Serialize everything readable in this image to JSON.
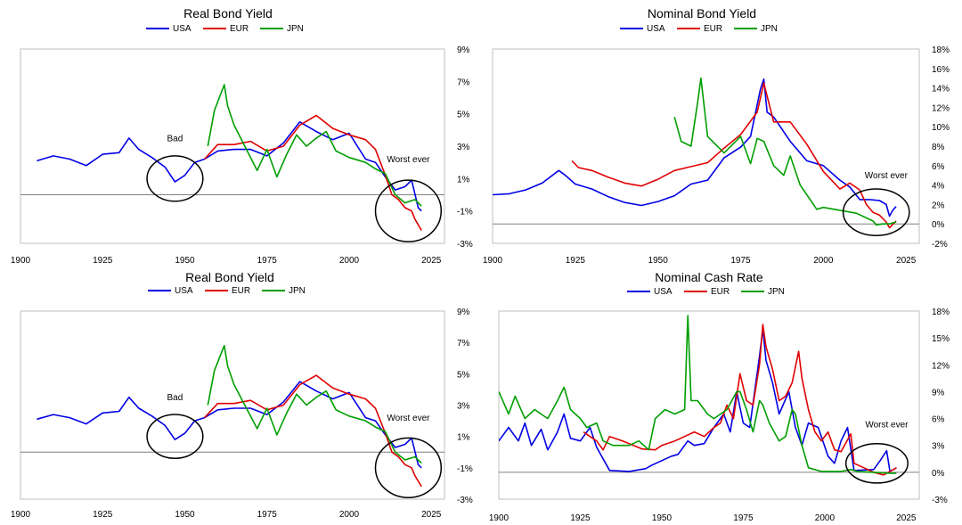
{
  "colors": {
    "USA": "#0000e6",
    "EUR": "#e00000",
    "JPN": "#009e00"
  },
  "chart_data": [
    {
      "type": "line",
      "title": "Real Bond Yield",
      "legend": [
        "USA",
        "EUR",
        "JPN"
      ],
      "x_ticks": [
        "1900",
        "1925",
        "1950",
        "1975",
        "2000",
        "2025"
      ],
      "y_ticks": [
        "9%",
        "7%",
        "5%",
        "3%",
        "1%",
        "-1%",
        "-3%"
      ],
      "xlim": [
        1900,
        2025
      ],
      "ylim": [
        -3,
        9
      ],
      "baseline": 0,
      "annotations": [
        {
          "label": "Bad",
          "x": 1947,
          "y": 3.3,
          "circle": [
            1947,
            1.0,
            8.5,
            1.4
          ]
        },
        {
          "label": "Worst ever",
          "x": 2018,
          "y": 2.0,
          "circle": [
            2018,
            -1.0,
            10,
            1.9
          ]
        }
      ],
      "series": [
        {
          "name": "USA",
          "x": [
            1905,
            1910,
            1915,
            1920,
            1925,
            1930,
            1933,
            1936,
            1940,
            1944,
            1947,
            1950,
            1953,
            1956,
            1960,
            1965,
            1970,
            1975,
            1980,
            1985,
            1990,
            1995,
            2000,
            2005,
            2008,
            2011,
            2014,
            2017,
            2019,
            2021,
            2022
          ],
          "y": [
            2.1,
            2.4,
            2.2,
            1.8,
            2.5,
            2.6,
            3.5,
            2.8,
            2.3,
            1.7,
            0.8,
            1.2,
            2.0,
            2.2,
            2.7,
            2.8,
            2.8,
            2.4,
            3.2,
            4.5,
            3.9,
            3.4,
            3.8,
            2.2,
            2.0,
            1.1,
            0.3,
            0.5,
            0.9,
            -0.8,
            -1.0
          ]
        },
        {
          "name": "EUR",
          "x": [
            1956,
            1960,
            1965,
            1970,
            1975,
            1980,
            1985,
            1990,
            1995,
            2000,
            2005,
            2008,
            2011,
            2013,
            2015,
            2017,
            2019,
            2020,
            2022
          ],
          "y": [
            2.2,
            3.1,
            3.1,
            3.3,
            2.7,
            3.0,
            4.3,
            4.9,
            4.1,
            3.7,
            3.4,
            2.8,
            1.2,
            0.0,
            -0.3,
            -0.8,
            -1.0,
            -1.5,
            -2.2
          ]
        },
        {
          "name": "JPN",
          "x": [
            1957,
            1959,
            1962,
            1963,
            1965,
            1968,
            1972,
            1975,
            1978,
            1981,
            1984,
            1987,
            1990,
            1993,
            1996,
            2000,
            2005,
            2008,
            2011,
            2014,
            2017,
            2020,
            2022
          ],
          "y": [
            3.0,
            5.2,
            6.8,
            5.5,
            4.3,
            3.1,
            1.5,
            2.8,
            1.1,
            2.5,
            3.7,
            3.0,
            3.5,
            3.9,
            2.7,
            2.3,
            2.0,
            1.6,
            1.3,
            0.0,
            -0.5,
            -0.3,
            -0.7
          ]
        }
      ]
    },
    {
      "type": "line",
      "title": "Nominal Bond Yield",
      "legend": [
        "USA",
        "EUR",
        "JPN"
      ],
      "x_ticks": [
        "1900",
        "1925",
        "1950",
        "1975",
        "2000",
        "2025"
      ],
      "y_ticks": [
        "18%",
        "16%",
        "14%",
        "12%",
        "10%",
        "8%",
        "6%",
        "4%",
        "2%",
        "0%",
        "-2%"
      ],
      "xlim": [
        1900,
        2025
      ],
      "ylim": [
        -2,
        18
      ],
      "baseline": 0,
      "annotations": [
        {
          "label": "Worst ever",
          "x": 2019,
          "y": 4.7,
          "circle": [
            2016,
            1.2,
            10,
            2.4
          ]
        }
      ],
      "series": [
        {
          "name": "USA",
          "x": [
            1900,
            1905,
            1910,
            1915,
            1920,
            1922,
            1925,
            1930,
            1935,
            1940,
            1945,
            1950,
            1955,
            1960,
            1965,
            1970,
            1975,
            1978,
            1981,
            1982,
            1983,
            1985,
            1990,
            1995,
            2000,
            2005,
            2008,
            2011,
            2014,
            2017,
            2019,
            2020,
            2021,
            2022
          ],
          "y": [
            3.0,
            3.1,
            3.5,
            4.2,
            5.5,
            5.0,
            4.1,
            3.6,
            2.8,
            2.2,
            1.9,
            2.3,
            2.9,
            4.1,
            4.5,
            6.8,
            7.9,
            9.0,
            13.9,
            14.9,
            11.5,
            11.0,
            8.5,
            6.5,
            6.0,
            4.5,
            3.8,
            2.5,
            2.5,
            2.4,
            2.0,
            0.8,
            1.4,
            1.8
          ]
        },
        {
          "name": "EUR",
          "x": [
            1924,
            1926,
            1930,
            1935,
            1940,
            1945,
            1950,
            1955,
            1960,
            1965,
            1970,
            1975,
            1980,
            1982,
            1985,
            1990,
            1995,
            2000,
            2005,
            2008,
            2011,
            2013,
            2015,
            2017,
            2019,
            2020,
            2022
          ],
          "y": [
            6.5,
            5.8,
            5.5,
            4.8,
            4.2,
            3.9,
            4.6,
            5.5,
            5.9,
            6.3,
            7.8,
            9.2,
            11.5,
            14.5,
            10.5,
            10.5,
            8.2,
            5.4,
            3.6,
            4.2,
            3.5,
            2.0,
            1.2,
            0.9,
            0.2,
            -0.4,
            0.3
          ]
        },
        {
          "name": "JPN",
          "x": [
            1955,
            1957,
            1960,
            1962,
            1963,
            1965,
            1970,
            1975,
            1978,
            1980,
            1982,
            1985,
            1988,
            1990,
            1993,
            1995,
            1998,
            2000,
            2005,
            2010,
            2015,
            2016,
            2018,
            2020,
            2022
          ],
          "y": [
            11.0,
            8.5,
            8.0,
            12.5,
            15.0,
            9.0,
            7.3,
            9.0,
            6.2,
            8.8,
            8.5,
            6.0,
            5.0,
            7.0,
            4.0,
            3.0,
            1.5,
            1.7,
            1.4,
            1.1,
            0.3,
            -0.1,
            0.0,
            0.0,
            0.2
          ]
        }
      ]
    },
    {
      "type": "line",
      "title": "Real Bond Yield",
      "legend": [
        "USA",
        "EUR",
        "JPN"
      ],
      "x_ticks": [
        "1900",
        "1925",
        "1950",
        "1975",
        "2000",
        "2025"
      ],
      "y_ticks": [
        "9%",
        "7%",
        "5%",
        "3%",
        "1%",
        "-1%",
        "-3%"
      ],
      "xlim": [
        1900,
        2025
      ],
      "ylim": [
        -3,
        9
      ],
      "baseline": 0,
      "annotations": [
        {
          "label": "Bad",
          "x": 1947,
          "y": 3.3,
          "circle": [
            1947,
            1.0,
            8.5,
            1.4
          ]
        },
        {
          "label": "Worst ever",
          "x": 2018,
          "y": 2.0,
          "circle": [
            2018,
            -1.0,
            10,
            1.9
          ]
        }
      ],
      "series": [
        {
          "name": "USA",
          "x": [
            1905,
            1910,
            1915,
            1920,
            1925,
            1930,
            1933,
            1936,
            1940,
            1944,
            1947,
            1950,
            1953,
            1956,
            1960,
            1965,
            1970,
            1975,
            1980,
            1985,
            1990,
            1995,
            2000,
            2005,
            2008,
            2011,
            2014,
            2017,
            2019,
            2021,
            2022
          ],
          "y": [
            2.1,
            2.4,
            2.2,
            1.8,
            2.5,
            2.6,
            3.5,
            2.8,
            2.3,
            1.7,
            0.8,
            1.2,
            2.0,
            2.2,
            2.7,
            2.8,
            2.8,
            2.4,
            3.2,
            4.5,
            3.9,
            3.4,
            3.8,
            2.2,
            2.0,
            1.1,
            0.3,
            0.5,
            0.9,
            -0.8,
            -1.0
          ]
        },
        {
          "name": "EUR",
          "x": [
            1956,
            1960,
            1965,
            1970,
            1975,
            1980,
            1985,
            1990,
            1995,
            2000,
            2005,
            2008,
            2011,
            2013,
            2015,
            2017,
            2019,
            2020,
            2022
          ],
          "y": [
            2.2,
            3.1,
            3.1,
            3.3,
            2.7,
            3.0,
            4.3,
            4.9,
            4.1,
            3.7,
            3.4,
            2.8,
            1.2,
            0.0,
            -0.3,
            -0.8,
            -1.0,
            -1.5,
            -2.2
          ]
        },
        {
          "name": "JPN",
          "x": [
            1957,
            1959,
            1962,
            1963,
            1965,
            1968,
            1972,
            1975,
            1978,
            1981,
            1984,
            1987,
            1990,
            1993,
            1996,
            2000,
            2005,
            2008,
            2011,
            2014,
            2017,
            2020,
            2022
          ],
          "y": [
            3.0,
            5.2,
            6.8,
            5.5,
            4.3,
            3.1,
            1.5,
            2.8,
            1.1,
            2.5,
            3.7,
            3.0,
            3.5,
            3.9,
            2.7,
            2.3,
            2.0,
            1.6,
            1.3,
            0.0,
            -0.5,
            -0.3,
            -0.7
          ]
        }
      ]
    },
    {
      "type": "line",
      "title": "Nominal Cash Rate",
      "legend": [
        "USA",
        "EUR",
        "JPN"
      ],
      "x_ticks": [
        "1900",
        "1925",
        "1950",
        "1975",
        "2000",
        "2025"
      ],
      "y_ticks": [
        "18%",
        "15%",
        "12%",
        "9%",
        "6%",
        "3%",
        "0%",
        "-3%"
      ],
      "xlim": [
        1900,
        2025
      ],
      "ylim": [
        -3,
        18
      ],
      "baseline": 0,
      "annotations": [
        {
          "label": "Worst ever",
          "x": 2019,
          "y": 5.0,
          "circle": [
            2016,
            1.0,
            9.5,
            2.2
          ]
        }
      ],
      "series": [
        {
          "name": "USA",
          "x": [
            1900,
            1903,
            1906,
            1908,
            1910,
            1913,
            1915,
            1918,
            1920,
            1922,
            1925,
            1928,
            1930,
            1932,
            1934,
            1940,
            1945,
            1947,
            1950,
            1953,
            1955,
            1958,
            1960,
            1963,
            1966,
            1969,
            1971,
            1973,
            1975,
            1977,
            1980,
            1981,
            1982,
            1984,
            1986,
            1989,
            1991,
            1993,
            1995,
            1998,
            2001,
            2003,
            2005,
            2007,
            2009,
            2015,
            2017,
            2019,
            2020,
            2022
          ],
          "y": [
            3.5,
            5.0,
            3.5,
            5.5,
            3.0,
            4.8,
            2.5,
            4.5,
            6.5,
            3.8,
            3.5,
            5.0,
            2.8,
            1.5,
            0.2,
            0.1,
            0.4,
            0.8,
            1.3,
            1.8,
            2.0,
            3.5,
            3.0,
            3.2,
            5.0,
            6.5,
            4.5,
            9.0,
            5.5,
            5.0,
            13.0,
            16.0,
            12.5,
            10.0,
            6.5,
            9.0,
            5.0,
            3.0,
            5.5,
            5.0,
            1.8,
            1.0,
            3.5,
            5.0,
            0.2,
            0.3,
            1.3,
            2.4,
            0.1,
            0.5
          ]
        },
        {
          "name": "EUR",
          "x": [
            1926,
            1928,
            1930,
            1932,
            1934,
            1938,
            1944,
            1948,
            1950,
            1954,
            1957,
            1960,
            1963,
            1966,
            1968,
            1970,
            1972,
            1974,
            1976,
            1978,
            1980,
            1981,
            1982,
            1984,
            1986,
            1988,
            1990,
            1992,
            1993,
            1995,
            1997,
            1999,
            2001,
            2003,
            2005,
            2008,
            2009,
            2012,
            2015,
            2018,
            2022
          ],
          "y": [
            4.5,
            4.0,
            3.5,
            2.5,
            4.0,
            3.5,
            2.6,
            2.5,
            3.0,
            3.5,
            4.0,
            4.5,
            4.0,
            5.0,
            5.5,
            7.5,
            6.0,
            11.0,
            8.0,
            7.5,
            12.0,
            16.5,
            14.0,
            11.5,
            8.0,
            8.5,
            10.0,
            13.5,
            10.5,
            7.0,
            4.5,
            3.5,
            4.5,
            2.5,
            2.3,
            4.3,
            1.0,
            0.5,
            0.0,
            -0.3,
            0.5
          ]
        },
        {
          "name": "JPN",
          "x": [
            1900,
            1903,
            1905,
            1908,
            1911,
            1915,
            1918,
            1920,
            1922,
            1925,
            1927,
            1930,
            1932,
            1935,
            1940,
            1943,
            1946,
            1948,
            1951,
            1954,
            1957,
            1958,
            1959,
            1961,
            1964,
            1966,
            1970,
            1973,
            1974,
            1976,
            1978,
            1980,
            1981,
            1983,
            1986,
            1988,
            1990,
            1991,
            1993,
            1995,
            1999,
            2005,
            2008,
            2010,
            2020,
            2022
          ],
          "y": [
            9.0,
            6.5,
            8.5,
            6.0,
            7.0,
            6.0,
            8.0,
            9.5,
            7.0,
            6.0,
            5.0,
            5.5,
            3.5,
            3.0,
            3.0,
            3.5,
            2.5,
            6.0,
            7.0,
            6.5,
            7.0,
            17.5,
            8.0,
            8.0,
            6.5,
            6.0,
            7.0,
            9.0,
            9.0,
            7.0,
            4.5,
            8.0,
            7.5,
            5.5,
            3.5,
            4.0,
            7.0,
            6.5,
            3.0,
            0.5,
            0.1,
            0.1,
            0.3,
            0.1,
            -0.1,
            -0.1
          ]
        }
      ]
    }
  ]
}
